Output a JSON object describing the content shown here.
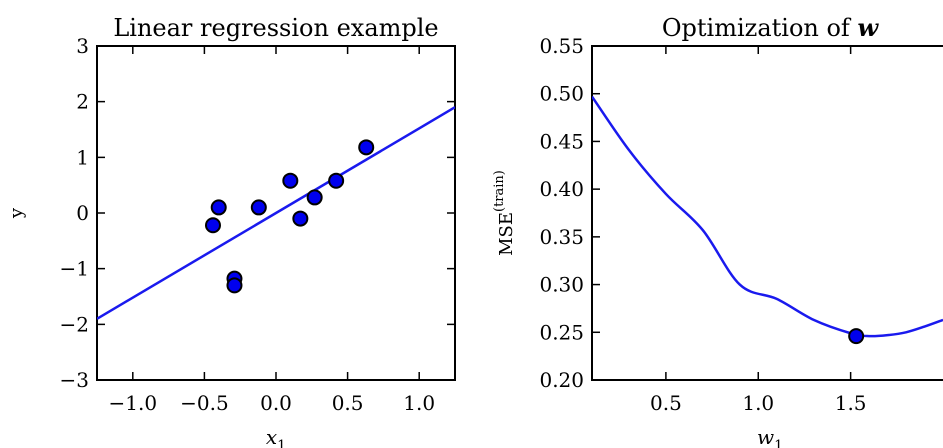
{
  "chart_data": [
    {
      "type": "scatter",
      "title": "Linear regression example",
      "xlabel": "x1",
      "ylabel": "y",
      "xlim": [
        -1.25,
        1.25
      ],
      "ylim": [
        -3,
        3
      ],
      "xticks": [
        -1.0,
        -0.5,
        0.0,
        0.5,
        1.0
      ],
      "xtick_labels": [
        "−1.0",
        "−0.5",
        "0.0",
        "0.5",
        "1.0"
      ],
      "yticks": [
        -3,
        -2,
        -1,
        0,
        1,
        2,
        3
      ],
      "ytick_labels": [
        "−3",
        "−2",
        "−1",
        "0",
        "1",
        "2",
        "3"
      ],
      "grid": false,
      "colors": {
        "points": "#0000ee",
        "line": "#1a1aee"
      },
      "series": [
        {
          "kind": "scatter",
          "x": [
            -0.44,
            -0.4,
            -0.29,
            -0.29,
            -0.12,
            0.1,
            0.17,
            0.27,
            0.42,
            0.63
          ],
          "y": [
            -0.22,
            0.1,
            -1.18,
            -1.3,
            0.1,
            0.58,
            -0.1,
            0.28,
            0.58,
            1.18
          ]
        },
        {
          "kind": "line",
          "x": [
            -1.25,
            1.25
          ],
          "y": [
            -1.9,
            1.9
          ]
        }
      ]
    },
    {
      "type": "line",
      "title": "Optimization of w",
      "xlabel": "w1",
      "ylabel": "MSE(train)",
      "xlim": [
        0.1,
        2.0
      ],
      "ylim": [
        0.2,
        0.55
      ],
      "xticks": [
        0.5,
        1.0,
        1.5
      ],
      "xtick_labels": [
        "0.5",
        "1.0",
        "1.5"
      ],
      "yticks": [
        0.2,
        0.25,
        0.3,
        0.35,
        0.4,
        0.45,
        0.5,
        0.55
      ],
      "ytick_labels": [
        "0.20",
        "0.25",
        "0.30",
        "0.35",
        "0.40",
        "0.45",
        "0.50",
        "0.55"
      ],
      "grid": false,
      "colors": {
        "points": "#0000ee",
        "line": "#1a1aee"
      },
      "series": [
        {
          "kind": "curve",
          "x": [
            0.1,
            0.3,
            0.5,
            0.7,
            0.9,
            1.1,
            1.3,
            1.5,
            1.6,
            1.7,
            1.8,
            1.9,
            2.0
          ],
          "y": [
            0.497,
            0.441,
            0.395,
            0.357,
            0.3,
            0.285,
            0.263,
            0.249,
            0.246,
            0.247,
            0.25,
            0.256,
            0.263
          ]
        },
        {
          "kind": "scatter",
          "x": [
            1.53
          ],
          "y": [
            0.246
          ]
        }
      ]
    }
  ]
}
